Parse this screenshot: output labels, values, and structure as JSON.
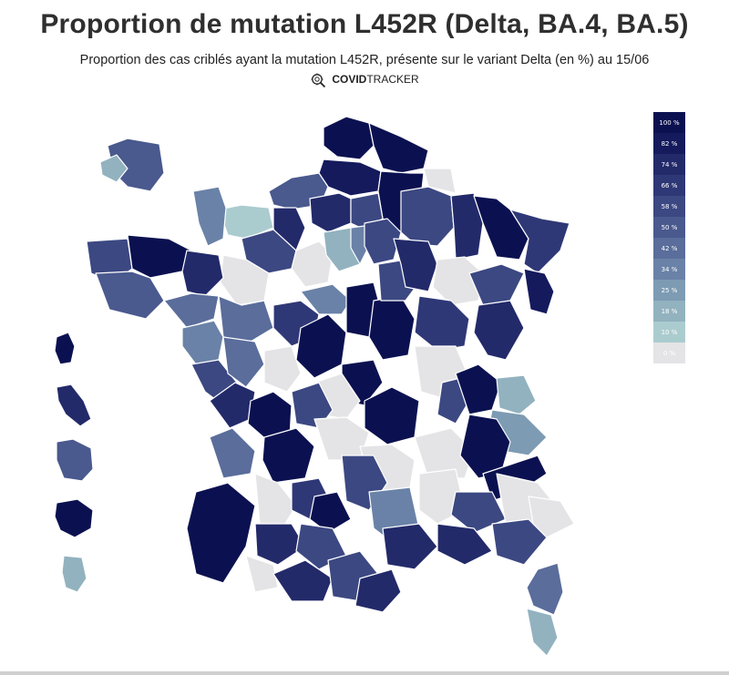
{
  "header": {
    "title": "Proportion de mutation L452R (Delta, BA.4, BA.5)",
    "subtitle": "Proportion des cas criblés ayant la mutation L452R, présente sur le variant Delta (en %) au 15/06",
    "brand_bold": "COVID",
    "brand_regular": "TRACKER",
    "brand_icon": "virus-magnifier-icon"
  },
  "legend": {
    "items": [
      {
        "label": "100 %",
        "color": "#0b1150"
      },
      {
        "label": "82 %",
        "color": "#141a5c"
      },
      {
        "label": "74 %",
        "color": "#232a6a"
      },
      {
        "label": "66 %",
        "color": "#2f3876"
      },
      {
        "label": "58 %",
        "color": "#3c4882"
      },
      {
        "label": "50 %",
        "color": "#4a598e"
      },
      {
        "label": "42 %",
        "color": "#5a6d9b"
      },
      {
        "label": "34 %",
        "color": "#6a82a7"
      },
      {
        "label": "25 %",
        "color": "#7d9bb3"
      },
      {
        "label": "18 %",
        "color": "#92b2bf"
      },
      {
        "label": "10 %",
        "color": "#abcccf"
      },
      {
        "label": "0 %",
        "color": "#e4e4e6"
      }
    ]
  },
  "map": {
    "region": "France (départements)",
    "colors": {
      "c100": "#0b1150",
      "c82": "#141a5c",
      "c74": "#232a6a",
      "c66": "#2f3876",
      "c58": "#3c4882",
      "c50": "#4a598e",
      "c42": "#5a6d9b",
      "c34": "#6a82a7",
      "c25": "#7d9bb3",
      "c18": "#92b2bf",
      "c10": "#abcccf",
      "c0": "#e4e4e6",
      "border": "#ffffff"
    }
  }
}
